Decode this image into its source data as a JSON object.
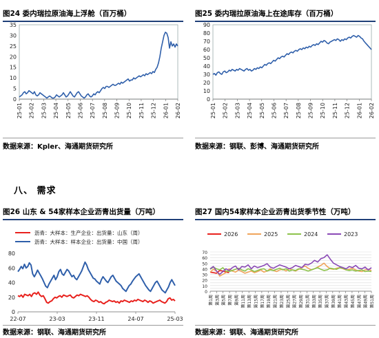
{
  "section_heading": "八、   需求",
  "charts": [
    {
      "title": "图24   委内瑞拉原油海上浮舱（百万桶）",
      "source": "数据来源：Kpler、海通期货研究所"
    },
    {
      "title": "图25   委内瑞拉原油海上在途库存（百万桶）",
      "source": "数据来源：钢联、彭博、海通期货研究所"
    },
    {
      "title": "图26   山东 & 54家样本企业沥青出货量（万吨）",
      "source": "数据来源：钢联、海通期货研究所"
    },
    {
      "title": "图27   国内54家样本企业沥青出货季节性（万吨）",
      "source": "数据来源：钢联、海通期货研究所"
    }
  ],
  "chart_data": [
    {
      "type": "line",
      "title": "图24   委内瑞拉原油海上浮舱（百万桶）",
      "x_ticks": [
        "25-01",
        "25-02",
        "25-03",
        "25-04",
        "25-05",
        "25-06",
        "25-07",
        "25-08",
        "25-09",
        "25-10",
        "25-11",
        "25-12",
        "26-01",
        "26-02"
      ],
      "ylim": [
        0,
        35
      ],
      "y_ticks": [
        0,
        5,
        10,
        15,
        20,
        25,
        30,
        35
      ],
      "grid": false,
      "series": [
        {
          "color": "#2f5faa",
          "x_start": "25-01",
          "step_days": 3.3,
          "values": [
            1,
            1.5,
            2,
            3,
            3.5,
            2.5,
            3,
            4,
            3.5,
            3,
            2.5,
            3.5,
            2,
            1.5,
            2,
            3,
            2.5,
            2,
            1.5,
            1,
            0.5,
            1,
            1.5,
            1,
            0.5,
            0.5,
            1,
            2,
            1.5,
            1,
            1.5,
            2,
            3,
            2,
            1,
            1.5,
            2.5,
            3.5,
            2.5,
            1.5,
            1,
            2,
            3,
            3.5,
            2.5,
            1.5,
            1,
            0.5,
            1,
            2,
            2.5,
            1.5,
            1,
            1.5,
            2.5,
            2,
            3,
            3.5,
            3,
            4,
            5,
            5.5,
            5,
            6,
            6,
            5.5,
            6,
            6.5,
            7,
            6.5,
            6.5,
            7,
            7.5,
            7,
            8,
            7.5,
            8,
            8.5,
            9,
            9.5,
            8.5,
            9,
            9,
            10,
            9.5,
            10,
            10.5,
            11,
            10.5,
            11,
            11.5,
            11,
            12,
            11.5,
            12,
            12.5,
            12,
            13,
            12.5,
            14,
            15,
            17,
            20,
            24,
            27,
            30,
            31.5,
            31,
            29,
            24,
            27,
            25,
            26,
            24.5,
            26,
            25
          ]
        }
      ]
    },
    {
      "type": "line",
      "title": "图25   委内瑞拉原油海上在途库存（百万桶）",
      "x_ticks": [
        "25-01",
        "25-02",
        "25-03",
        "25-04",
        "25-05",
        "25-06",
        "25-07",
        "25-08",
        "25-09",
        "25-10",
        "25-11",
        "25-12",
        "26-01",
        "26-02"
      ],
      "ylim": [
        0,
        90
      ],
      "y_ticks": [
        0,
        10,
        20,
        30,
        40,
        50,
        60,
        70,
        80,
        90
      ],
      "grid": false,
      "series": [
        {
          "color": "#2f5faa",
          "values": [
            30,
            31,
            29,
            32,
            33,
            31,
            30,
            33,
            34,
            32,
            33,
            35,
            34,
            36,
            35,
            34,
            36,
            35,
            37,
            36,
            35,
            34,
            36,
            37,
            35,
            36,
            34,
            35,
            37,
            36,
            38,
            37,
            39,
            38,
            40,
            42,
            41,
            43,
            44,
            43,
            45,
            47,
            46,
            48,
            50,
            49,
            51,
            52,
            51,
            53,
            55,
            54,
            56,
            57,
            56,
            58,
            59,
            58,
            60,
            61,
            60,
            62,
            61,
            63,
            62,
            64,
            63,
            65,
            66,
            65,
            67,
            66,
            68,
            70,
            69,
            71,
            70,
            68,
            67,
            69,
            70,
            71,
            72,
            71,
            73,
            72,
            70,
            72,
            71,
            73,
            72,
            74,
            75,
            74,
            76,
            77,
            76,
            75,
            77,
            76,
            74,
            73,
            70,
            68,
            66,
            64,
            62,
            60
          ]
        }
      ]
    },
    {
      "type": "line",
      "title": "图26   山东 & 54家样本企业沥青出货量（万吨）",
      "x_ticks": [
        "22-07",
        "23-03",
        "23-11",
        "24-07",
        "25-03"
      ],
      "ylim": [
        0,
        80
      ],
      "y_ticks": [
        0,
        20,
        40,
        60,
        80
      ],
      "grid": false,
      "series": [
        {
          "name": "沥青：大样本：生产企业：出货量：山东（周）",
          "color": "#e8211d",
          "values": [
            22,
            21,
            23,
            20,
            24,
            23,
            22,
            24,
            21,
            25,
            26,
            24,
            27,
            23,
            21,
            22,
            18,
            13,
            12,
            14,
            15,
            18,
            20,
            19,
            21,
            22,
            20,
            23,
            22,
            21,
            22,
            23,
            20,
            19,
            21,
            23,
            22,
            24,
            23,
            22,
            21,
            22,
            20,
            17,
            15,
            14,
            16,
            15,
            13,
            14,
            12,
            11,
            13,
            14,
            16,
            15,
            14,
            15,
            13,
            14,
            12,
            15,
            14,
            16,
            15,
            14,
            13,
            15,
            14,
            16,
            15,
            17,
            16,
            15,
            14,
            16,
            15,
            13,
            15,
            14,
            12,
            13,
            14,
            15,
            16,
            14,
            13,
            12,
            14,
            18,
            19,
            16,
            17,
            15
          ]
        },
        {
          "name": "沥青：大样本：样本企业：出货量：中国（周）",
          "color": "#2f5faa",
          "values": [
            55,
            58,
            62,
            59,
            65,
            60,
            62,
            67,
            64,
            52,
            48,
            52,
            57,
            53,
            49,
            45,
            40,
            35,
            33,
            38,
            42,
            46,
            50,
            44,
            48,
            55,
            58,
            52,
            50,
            54,
            58,
            56,
            52,
            48,
            50,
            46,
            44,
            48,
            52,
            56,
            62,
            68,
            64,
            58,
            54,
            50,
            46,
            45,
            42,
            40,
            38,
            44,
            48,
            45,
            42,
            40,
            44,
            48,
            50,
            46,
            42,
            40,
            38,
            36,
            32,
            30,
            28,
            32,
            36,
            38,
            42,
            45,
            48,
            50,
            52,
            48,
            44,
            40,
            36,
            33,
            30,
            28,
            32,
            36,
            40,
            42,
            38,
            34,
            30,
            28,
            26,
            30,
            34,
            40,
            44,
            40,
            36
          ]
        }
      ]
    },
    {
      "type": "line",
      "title": "图27   国内54家样本企业沥青出货季节性（万吨）",
      "x_ticks": [
        "第1周",
        "第3周",
        "第5周",
        "第7周",
        "第9周",
        "第11周",
        "第13周",
        "第15周",
        "第17周",
        "第19周",
        "第21周",
        "第23周",
        "第25周",
        "第27周",
        "第29周",
        "第31周",
        "第33周",
        "第35周",
        "第37周",
        "第39周",
        "第41周",
        "第43周",
        "第45周",
        "第47周",
        "第49周",
        "第51周"
      ],
      "ylim": [
        0,
        70
      ],
      "y_ticks": [
        0,
        5,
        10,
        15,
        20,
        25,
        30,
        35,
        40,
        45,
        50,
        55,
        60,
        65,
        70
      ],
      "grid": true,
      "series": [
        {
          "name": "2026",
          "color": "#e8211d",
          "values": [
            34,
            33,
            32,
            37,
            36,
            34,
            33
          ]
        },
        {
          "name": "2025",
          "color": "#f0a45a",
          "values": [
            34,
            39,
            36,
            27,
            30,
            33,
            40,
            36,
            34,
            38,
            35,
            32,
            34,
            36,
            33,
            35,
            38,
            34,
            36,
            40,
            37,
            35,
            38,
            39,
            36,
            40,
            38,
            36,
            39,
            42,
            45,
            41,
            38,
            40,
            43,
            46,
            50,
            44,
            40,
            39,
            41,
            42,
            40,
            38,
            39,
            41,
            38,
            36,
            35,
            38,
            39,
            37
          ]
        },
        {
          "name": "2024",
          "color": "#8cc24a",
          "values": [
            39,
            43,
            40,
            38,
            42,
            36,
            35,
            37,
            39,
            41,
            38,
            36,
            40,
            38,
            35,
            37,
            39,
            40,
            36,
            38,
            37,
            39,
            41,
            38,
            40,
            36,
            38,
            37,
            40,
            39,
            38,
            36,
            38,
            40,
            42,
            39,
            37,
            38,
            41,
            40,
            39,
            42,
            41,
            38,
            37,
            38,
            36,
            37,
            38,
            35,
            36,
            35
          ]
        },
        {
          "name": "2023",
          "color": "#8a49b6",
          "values": [
            40,
            44,
            36,
            30,
            35,
            40,
            37,
            42,
            45,
            38,
            44,
            43,
            47,
            40,
            45,
            42,
            44,
            46,
            49,
            43,
            41,
            44,
            47,
            45,
            43,
            40,
            42,
            46,
            44,
            42,
            48,
            47,
            50,
            55,
            52,
            58,
            60,
            65,
            57,
            50,
            47,
            44,
            42,
            40,
            44,
            42,
            46,
            41,
            40,
            43,
            38,
            42
          ]
        }
      ]
    }
  ]
}
